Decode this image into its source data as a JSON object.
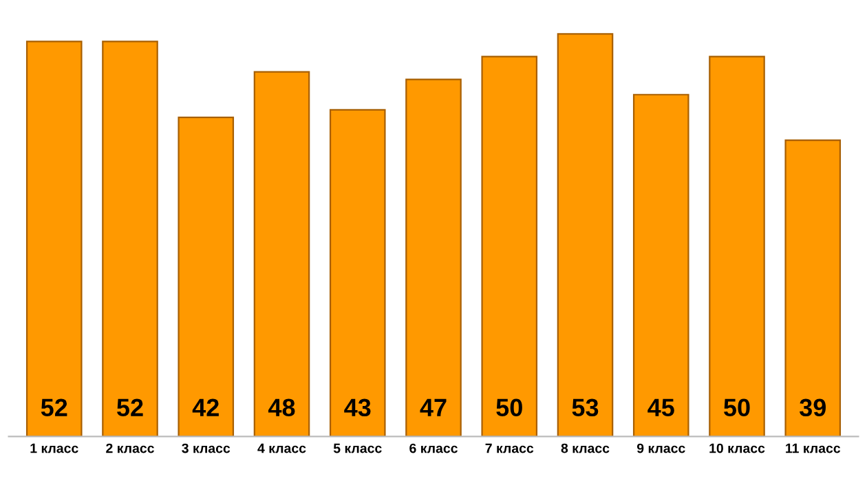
{
  "chart_data": {
    "type": "bar",
    "categories": [
      "1 класс",
      "2 класс",
      "3 класс",
      "4 класс",
      "5 класс",
      "6 класс",
      "7 класс",
      "8 класс",
      "9 класс",
      "10 класс",
      "11 класс"
    ],
    "values": [
      52,
      52,
      42,
      48,
      43,
      47,
      50,
      53,
      45,
      50,
      39
    ],
    "color": "#ff9900",
    "data_labels": true,
    "grid": false,
    "legend": false
  }
}
